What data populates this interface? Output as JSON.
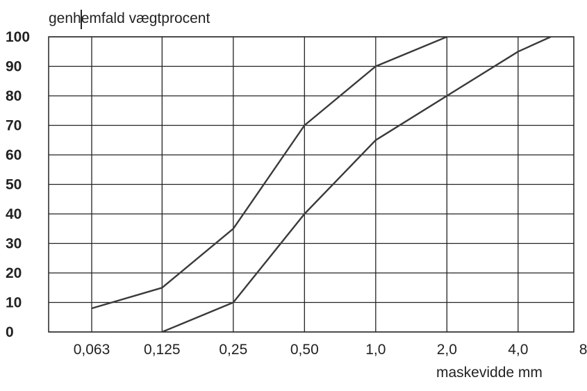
{
  "chart_data": {
    "type": "line",
    "title": "",
    "ylabel": "genhemfald vægtprocent",
    "xlabel": "maskevidde mm",
    "x_ticks": [
      "0,063",
      "0,125",
      "0,25",
      "0,50",
      "1,0",
      "2,0",
      "4,0",
      "8,0"
    ],
    "y_ticks": [
      "0",
      "10",
      "20",
      "30",
      "40",
      "50",
      "60",
      "70",
      "80",
      "90",
      "100"
    ],
    "x_scale": "log2",
    "ylim": [
      0,
      100
    ],
    "grid": true,
    "series": [
      {
        "x": [
          0.063,
          0.125,
          0.25,
          0.5,
          1.0,
          2.0
        ],
        "y": [
          8,
          15,
          35,
          70,
          90,
          100
        ]
      },
      {
        "x": [
          0.125,
          0.25,
          0.5,
          1.0,
          2.0,
          4.0,
          5.5
        ],
        "y": [
          0,
          10,
          40,
          65,
          80,
          95,
          100
        ]
      }
    ],
    "line_color": "#3a3a3a",
    "grid_color": "#222222"
  }
}
